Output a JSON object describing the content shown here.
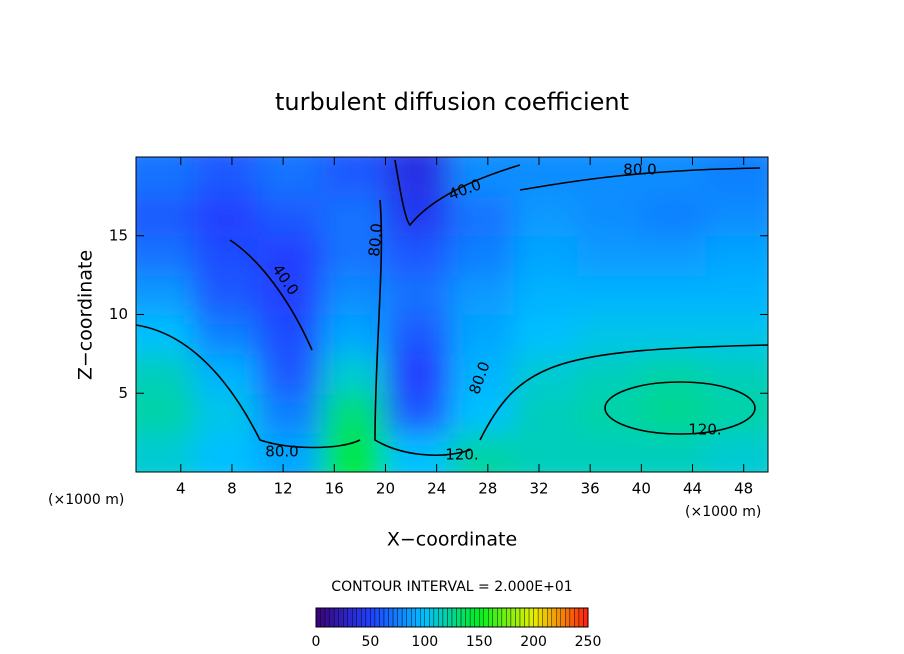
{
  "chart_data": {
    "type": "heatmap",
    "title": "turbulent diffusion coefficient",
    "x_label": "X−coordinate",
    "y_label": "Z−coordinate",
    "x_unit_label": "(×1000 m)",
    "x_unit_label_right": "(×1000 m)",
    "contour_interval": "CONTOUR INTERVAL = 2.000E+01",
    "xlim": [
      0.5,
      49.9
    ],
    "ylim": [
      0,
      20
    ],
    "xticks": [
      4,
      8,
      12,
      16,
      20,
      24,
      28,
      32,
      36,
      40,
      44,
      48
    ],
    "yticks": [
      5,
      10,
      15
    ],
    "x": [
      2.5,
      7.5,
      12.5,
      17.5,
      22.5,
      27.5,
      32.5,
      37.5,
      42.5,
      47.5
    ],
    "z": [
      1.25,
      3.75,
      6.25,
      8.75,
      11.25,
      13.75,
      16.25,
      18.75
    ],
    "values": [
      [
        110,
        100,
        90,
        140,
        100,
        120,
        115,
        115,
        115,
        110
      ],
      [
        120,
        105,
        75,
        130,
        60,
        100,
        115,
        120,
        125,
        120
      ],
      [
        115,
        95,
        60,
        110,
        50,
        95,
        110,
        115,
        120,
        115
      ],
      [
        100,
        75,
        55,
        90,
        60,
        90,
        100,
        105,
        105,
        105
      ],
      [
        85,
        60,
        50,
        80,
        70,
        85,
        95,
        95,
        95,
        95
      ],
      [
        70,
        55,
        50,
        70,
        60,
        75,
        90,
        85,
        85,
        90
      ],
      [
        60,
        50,
        60,
        70,
        45,
        70,
        85,
        80,
        75,
        80
      ],
      [
        70,
        60,
        70,
        60,
        40,
        80,
        80,
        80,
        80,
        75
      ]
    ],
    "contour_labels": [
      "80.0",
      "40.0",
      "80.0",
      "40.0",
      "80.0",
      "120.",
      "120.",
      "80.0"
    ],
    "colormap": [
      "#3c007a",
      "#2040ff",
      "#00c0ff",
      "#00f020",
      "#e8f000",
      "#ff2010"
    ],
    "clim": [
      0,
      250
    ],
    "colorbar_ticks": [
      0,
      50,
      100,
      150,
      200,
      250
    ]
  }
}
